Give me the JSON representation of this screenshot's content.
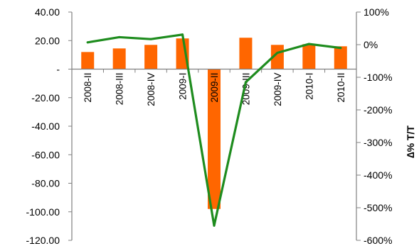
{
  "chart_data": {
    "type": "bar+line",
    "categories": [
      "2008-II",
      "2008-III",
      "2008-IV",
      "2009-I",
      "2009-II",
      "2009-III",
      "2009-IV",
      "2010-I",
      "2010-II"
    ],
    "series": [
      {
        "kind": "bar",
        "axis": "left",
        "color": "#ff6600",
        "values": [
          12.0,
          14.5,
          17.0,
          21.5,
          -98.0,
          22.0,
          17.0,
          17.5,
          16.0
        ]
      },
      {
        "kind": "line",
        "axis": "right",
        "color": "#1e8c1e",
        "values": [
          0.07,
          0.23,
          0.17,
          0.31,
          -5.55,
          -1.15,
          -0.25,
          0.02,
          -0.1
        ]
      }
    ],
    "y_left": {
      "range": [
        -120,
        40
      ],
      "ticks": [
        40,
        20,
        0,
        -20,
        -40,
        -60,
        -80,
        -100,
        -120
      ],
      "tick_labels": [
        "40.00",
        "20.00",
        "-",
        "-20.00",
        "-40.00",
        "-60.00",
        "-80.00",
        "-100.00",
        "-120.00"
      ]
    },
    "y_right": {
      "range": [
        -6.0,
        1.0
      ],
      "ticks": [
        1.0,
        0.0,
        -1.0,
        -2.0,
        -3.0,
        -4.0,
        -5.0,
        -6.0
      ],
      "tick_labels": [
        "100%",
        "0%",
        "-100%",
        "-200%",
        "-300%",
        "-400%",
        "-500%",
        "-600%"
      ],
      "title": "∆% T/T"
    },
    "grid": false,
    "legend": "none"
  }
}
